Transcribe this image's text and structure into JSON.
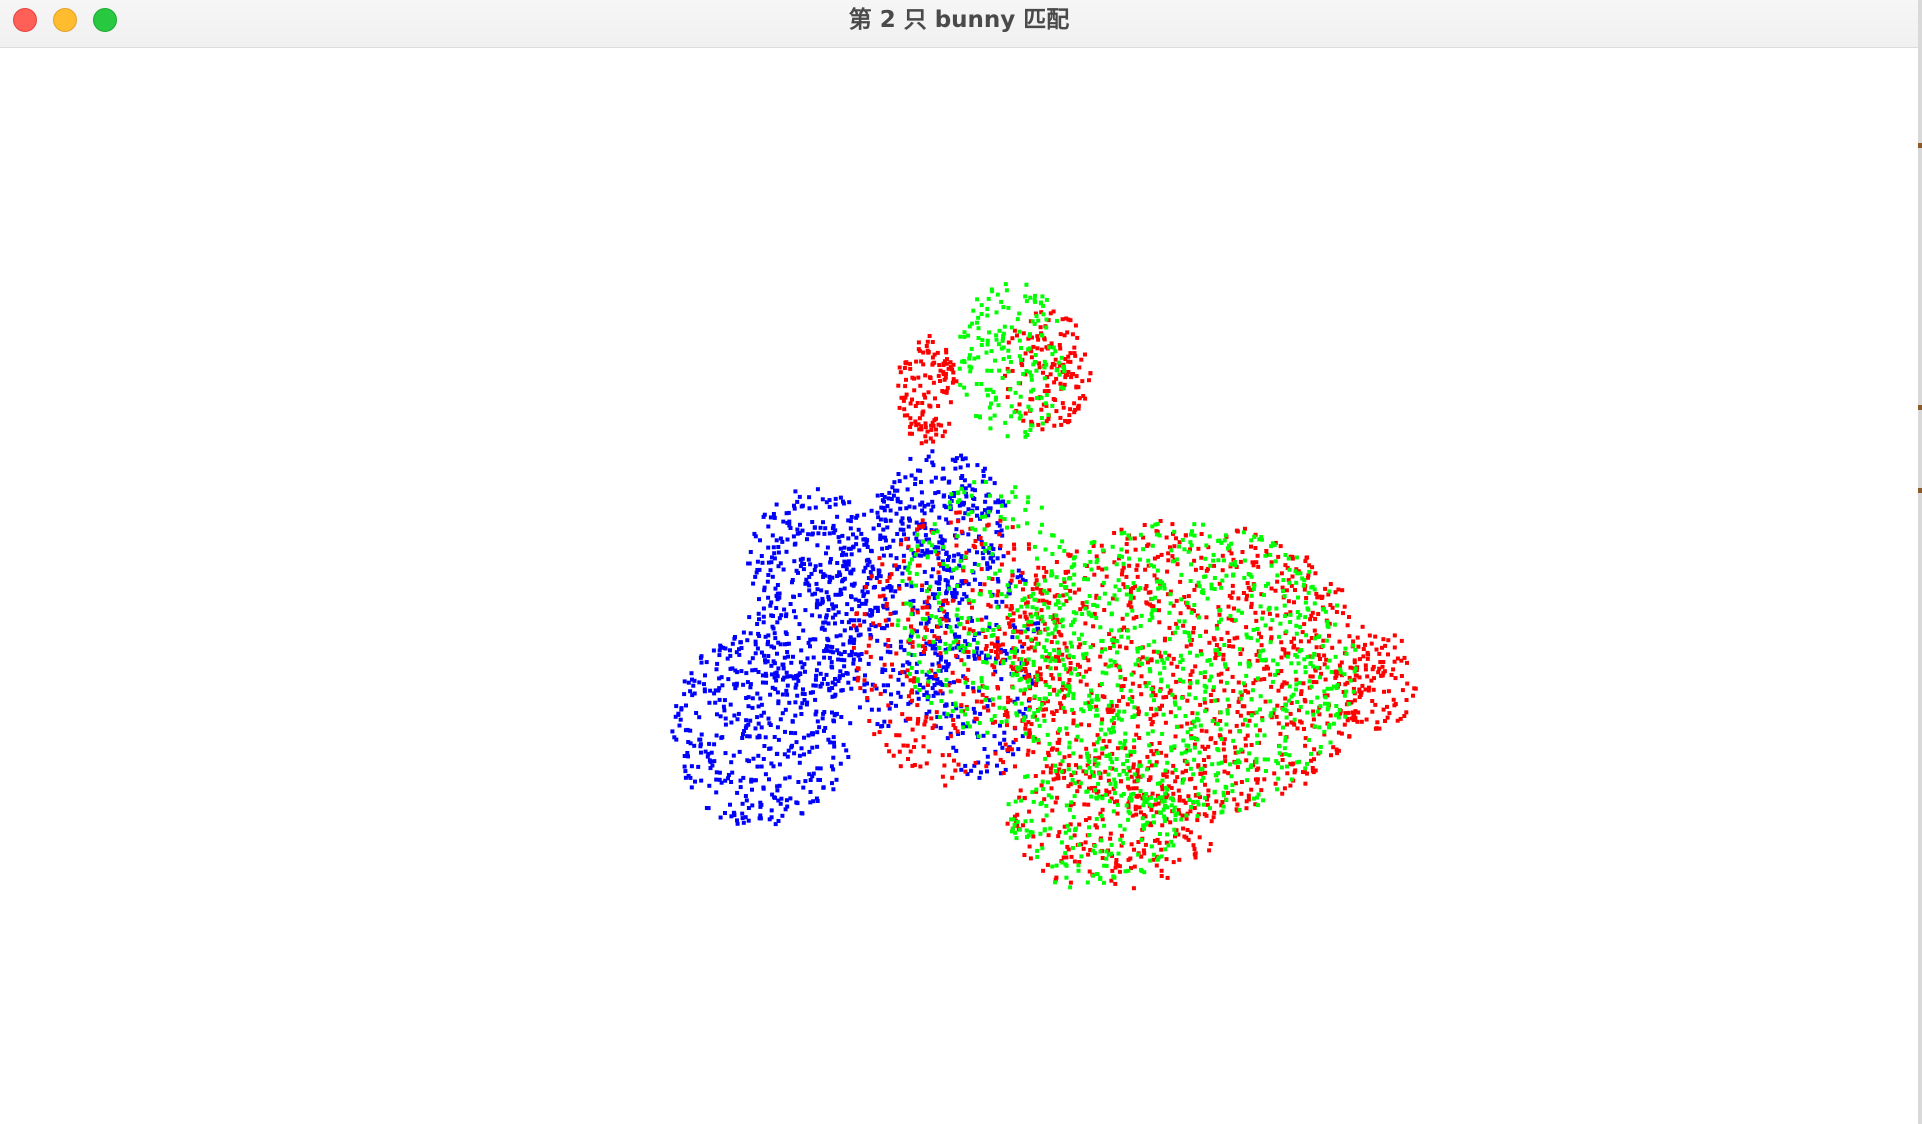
{
  "window": {
    "title": "第 2 只 bunny 匹配",
    "controls": {
      "close": "close-button",
      "minimize": "minimize-button",
      "zoom": "zoom-button"
    }
  },
  "viewer": {
    "background": "#ffffff",
    "point_clouds": [
      {
        "color": "#0000ff",
        "role": "source"
      },
      {
        "color": "#ff0000",
        "role": "target"
      },
      {
        "color": "#00ff00",
        "role": "aligned"
      }
    ]
  }
}
